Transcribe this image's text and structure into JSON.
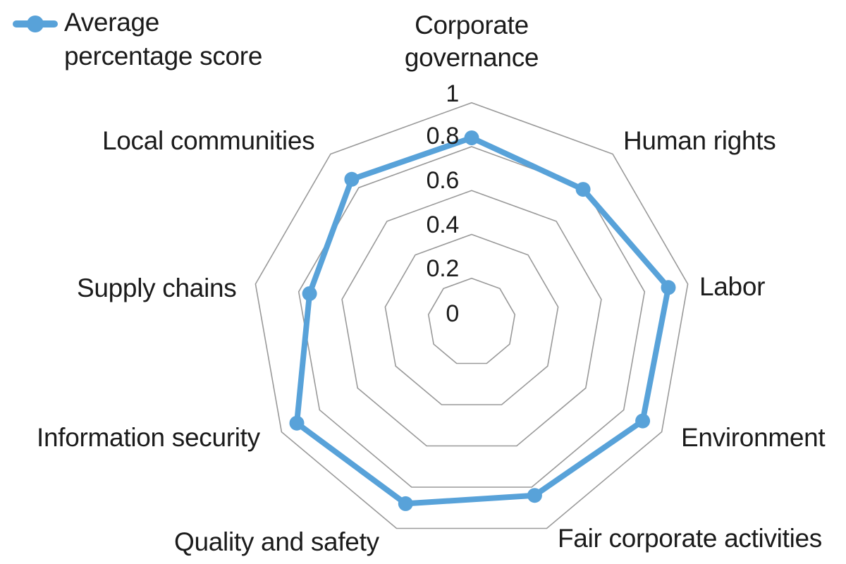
{
  "legend": {
    "label": "Average percentage score"
  },
  "chart_data": {
    "type": "radar",
    "categories": [
      "Corporate governance",
      "Human rights",
      "Labor",
      "Environment",
      "Fair corporate activities",
      "Quality and safety",
      "Information security",
      "Supply chains",
      "Local communities"
    ],
    "series": [
      {
        "name": "Average percentage score",
        "values": [
          0.84,
          0.79,
          0.91,
          0.9,
          0.84,
          0.88,
          0.92,
          0.75,
          0.85
        ]
      }
    ],
    "ticks": [
      "1",
      "0.8",
      "0.6",
      "0.4",
      "0.2",
      "0"
    ],
    "tick_values": [
      1,
      0.8,
      0.6,
      0.4,
      0.2,
      0
    ],
    "rings": [
      0.2,
      0.4,
      0.6,
      0.8,
      1.0
    ],
    "range": [
      0,
      1
    ],
    "start_axis": "top",
    "direction": "clockwise",
    "grid": "polygon",
    "legend_position": "top-left",
    "colors": {
      "series": "#58A2D9",
      "grid": "#999999",
      "text": "#1b1b1b",
      "background": "#ffffff"
    }
  }
}
